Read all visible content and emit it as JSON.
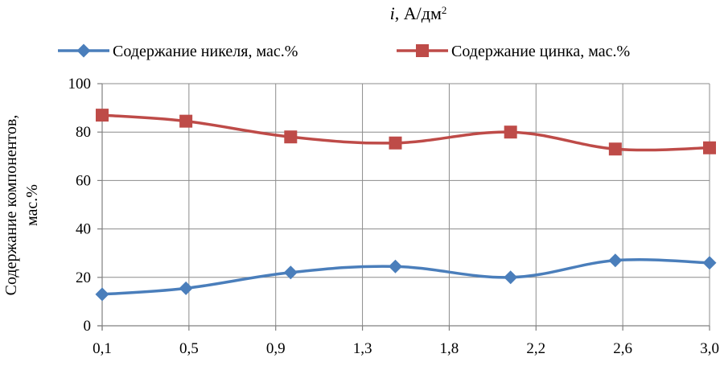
{
  "chart_data": {
    "type": "line",
    "title_var": "i",
    "title_rest": ", А/дм",
    "title_sup": "2",
    "xlabel": "",
    "ylabel_line1": "Содержание компонентов,",
    "ylabel_line2": "мас.%",
    "categories": [
      "0,1",
      "0,5",
      "0,9",
      "1,3",
      "1,8",
      "2,2",
      "2,6",
      "3,0"
    ],
    "ylim": [
      0,
      100
    ],
    "yticks": [
      "0",
      "20",
      "40",
      "60",
      "80",
      "100"
    ],
    "grid": true,
    "legend": "top",
    "series": [
      {
        "name": "Содержание никеля, мас.%",
        "color": "#4a7ebb",
        "marker": "diamond",
        "x": [
          0.1,
          0.5,
          1.0,
          1.5,
          2.05,
          2.55,
          3.0
        ],
        "values": [
          13,
          15.5,
          22,
          24.5,
          20,
          27,
          26
        ]
      },
      {
        "name": "Содержание цинка, мас.%",
        "color": "#be4b48",
        "marker": "square",
        "x": [
          0.1,
          0.5,
          1.0,
          1.5,
          2.05,
          2.55,
          3.0
        ],
        "values": [
          87,
          84.5,
          78,
          75.5,
          80,
          73,
          73.5
        ]
      }
    ]
  }
}
